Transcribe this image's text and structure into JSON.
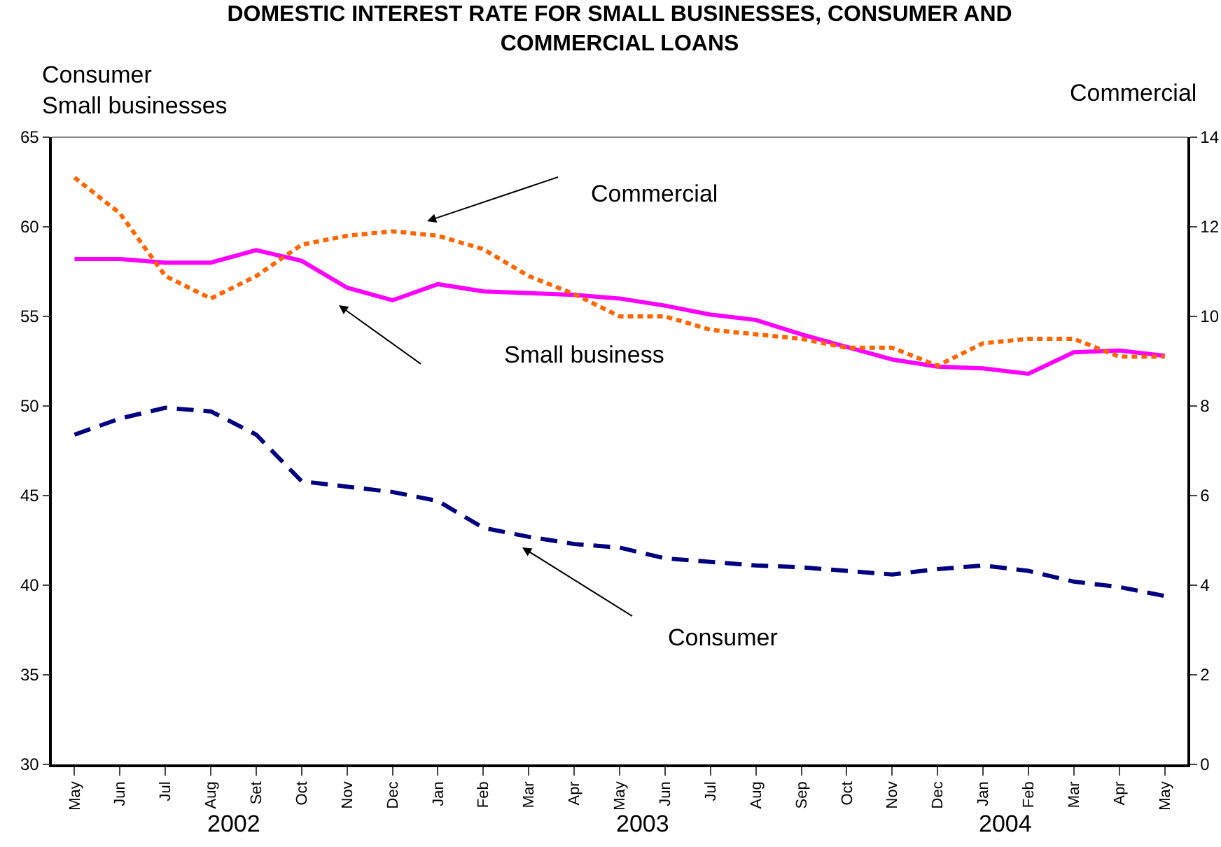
{
  "chart_data": {
    "type": "line",
    "title": "DOMESTIC INTEREST RATE FOR SMALL BUSINESSES, CONSUMER AND\nCOMMERCIAL LOANS",
    "ylabel": "Consumer\nSmall businesses",
    "y2label": "Commercial",
    "categories": [
      "May",
      "Jun",
      "Jul",
      "Aug",
      "Set",
      "Oct",
      "Nov",
      "Dec",
      "Jan",
      "Feb",
      "Mar",
      "Apr",
      "May",
      "Jun",
      "Jul",
      "Aug",
      "Sep",
      "Oct",
      "Nov",
      "Dec",
      "Jan",
      "Feb",
      "Mar",
      "Apr",
      "May"
    ],
    "series": [
      {
        "color": "#ff00ff",
        "line_style": "solid",
        "values": [
          58.2,
          58.2,
          58.0,
          58.0,
          58.7,
          58.1,
          56.6,
          55.9,
          56.8,
          56.4,
          56.3,
          56.2,
          56.0,
          55.6,
          55.1,
          54.8,
          54.0,
          53.3,
          52.6,
          52.2,
          52.1,
          51.8,
          53.0,
          53.1,
          52.8
        ]
      },
      {
        "color": "#ff6600",
        "line_style": "dotted",
        "axis": "y2",
        "values": [
          13.1,
          12.3,
          10.9,
          10.4,
          10.9,
          11.6,
          11.8,
          11.9,
          11.8,
          11.5,
          10.9,
          10.5,
          10.0,
          10.0,
          9.7,
          9.6,
          9.5,
          9.3,
          9.3,
          8.9,
          9.4,
          9.5,
          9.5,
          9.1,
          9.1
        ]
      },
      {
        "color": "#000080",
        "line_style": "dashed",
        "values": [
          48.4,
          49.3,
          49.9,
          49.7,
          48.4,
          45.8,
          45.5,
          45.2,
          44.7,
          43.2,
          42.7,
          42.3,
          42.1,
          41.5,
          41.3,
          41.1,
          41.0,
          40.8,
          40.6,
          40.9,
          41.1,
          40.8,
          40.2,
          39.9,
          39.4
        ]
      }
    ],
    "ylim": [
      30,
      65
    ],
    "yticks": [
      30,
      35,
      40,
      45,
      50,
      55,
      60,
      65
    ],
    "y2lim": [
      0,
      14
    ],
    "y2ticks": [
      0,
      2,
      4,
      6,
      8,
      10,
      12,
      14
    ],
    "annotations": [
      "Commercial",
      "Small business",
      "Consumer",
      "2002",
      "2003",
      "2004"
    ],
    "grid": false,
    "marker": "none"
  }
}
